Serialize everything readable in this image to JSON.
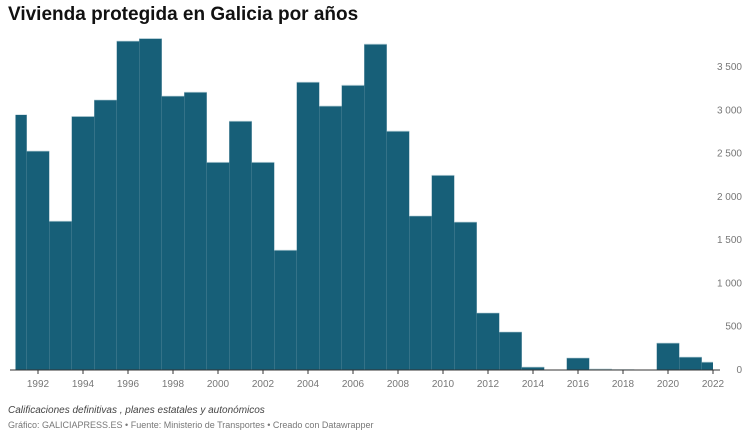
{
  "title": "Vivienda protegida en Galicia por años",
  "notes": "Calificaciones definitivas , planes estatales y autonómicos",
  "footer": "Gráfico: GALICIAPRESS.ES • Fuente: Ministerio de Transportes • Creado con Datawrapper",
  "colors": {
    "bar": "#175f78",
    "axis": "#333333"
  },
  "chart_data": {
    "type": "area",
    "style": "step",
    "title": "Vivienda protegida en Galicia por años",
    "xlabel": "",
    "ylabel": "",
    "x": [
      1991,
      1992,
      1993,
      1994,
      1995,
      1996,
      1997,
      1998,
      1999,
      2000,
      2001,
      2002,
      2003,
      2004,
      2005,
      2006,
      2007,
      2008,
      2009,
      2010,
      2011,
      2012,
      2013,
      2014,
      2015,
      2016,
      2017,
      2018,
      2019,
      2020,
      2021,
      2022
    ],
    "values": [
      2950,
      2530,
      1720,
      2930,
      3120,
      3800,
      3830,
      3165,
      3210,
      2400,
      2875,
      2400,
      1385,
      3325,
      3050,
      3290,
      3765,
      2760,
      1780,
      2250,
      1710,
      660,
      440,
      35,
      0,
      140,
      12,
      5,
      0,
      312,
      150,
      92
    ],
    "xticks": [
      "1992",
      "1994",
      "1996",
      "1998",
      "2000",
      "2002",
      "2004",
      "2006",
      "2008",
      "2010",
      "2012",
      "2014",
      "2016",
      "2018",
      "2020",
      "2022"
    ],
    "yticks": [
      "0",
      "500",
      "1 000",
      "1 500",
      "2 000",
      "2 500",
      "3 000",
      "3 500"
    ],
    "ylim": [
      0,
      3900
    ],
    "yaxis_position": "right",
    "grid": false
  }
}
